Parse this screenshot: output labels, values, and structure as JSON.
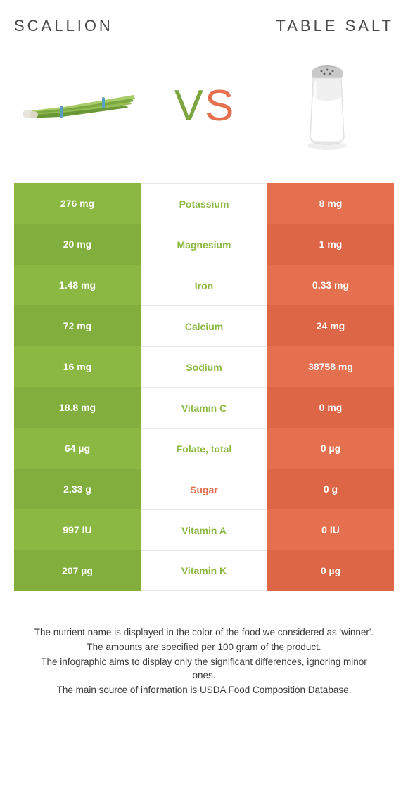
{
  "header": {
    "left_title": "SCALLION",
    "right_title": "TABLE SALT"
  },
  "vs": {
    "v": "V",
    "s": "S"
  },
  "colors": {
    "green": "#8bb842",
    "green_dark": "#81ae3d",
    "orange": "#e4704f",
    "orange_dark": "#dd6647",
    "text_green": "#8bb842",
    "text_orange": "#e4704f",
    "background": "#ffffff",
    "border": "#e8e8e8"
  },
  "table": {
    "left_color": "green",
    "right_color": "orange",
    "rows": [
      {
        "left": "276 mg",
        "label": "Potassium",
        "right": "8 mg",
        "winner": "green"
      },
      {
        "left": "20 mg",
        "label": "Magnesium",
        "right": "1 mg",
        "winner": "green"
      },
      {
        "left": "1.48 mg",
        "label": "Iron",
        "right": "0.33 mg",
        "winner": "green"
      },
      {
        "left": "72 mg",
        "label": "Calcium",
        "right": "24 mg",
        "winner": "green"
      },
      {
        "left": "16 mg",
        "label": "Sodium",
        "right": "38758 mg",
        "winner": "green"
      },
      {
        "left": "18.8 mg",
        "label": "Vitamin C",
        "right": "0 mg",
        "winner": "green"
      },
      {
        "left": "64 µg",
        "label": "Folate, total",
        "right": "0 µg",
        "winner": "green"
      },
      {
        "left": "2.33 g",
        "label": "Sugar",
        "right": "0 g",
        "winner": "orange"
      },
      {
        "left": "997 IU",
        "label": "Vitamin A",
        "right": "0 IU",
        "winner": "green"
      },
      {
        "left": "207 µg",
        "label": "Vitamin K",
        "right": "0 µg",
        "winner": "green"
      }
    ]
  },
  "notes": {
    "line1": "The nutrient name is displayed in the color of the food we considered as 'winner'.",
    "line2": "The amounts are specified per 100 gram of the product.",
    "line3": "The infographic aims to display only the significant differences, ignoring minor ones.",
    "line4": "The main source of information is USDA Food Composition Database."
  }
}
